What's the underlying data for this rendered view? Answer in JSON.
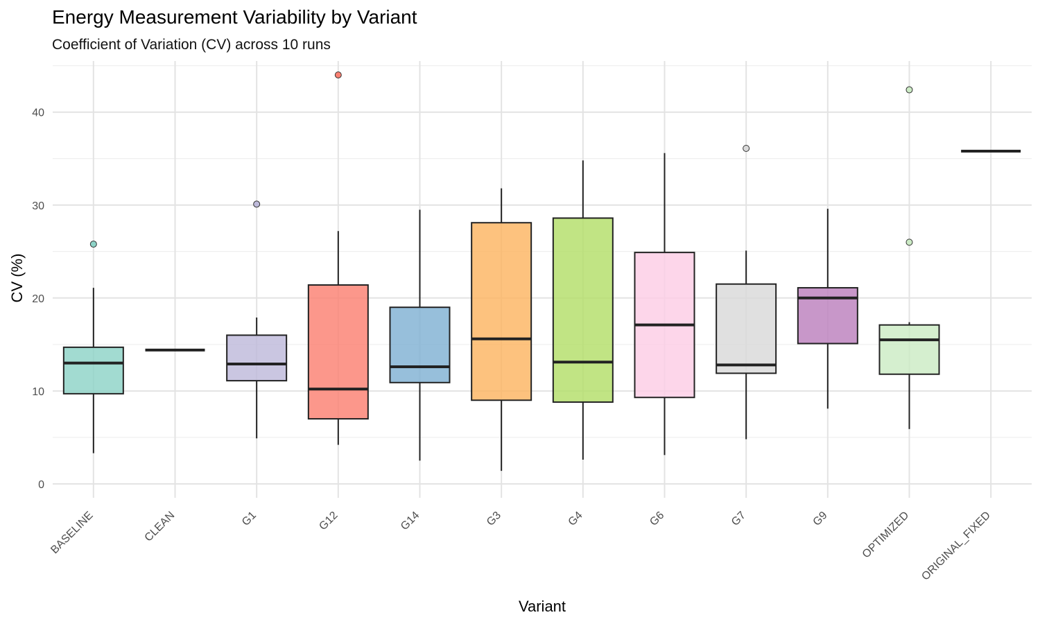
{
  "chart_data": {
    "type": "box",
    "title": "Energy Measurement Variability by Variant",
    "subtitle": "Coefficient of Variation (CV) across 10 runs",
    "xlabel": "Variant",
    "ylabel": "CV (%)",
    "ylim": [
      -1.5,
      45.5
    ],
    "yticks": [
      0,
      10,
      20,
      30,
      40
    ],
    "grid": true,
    "legend": "none",
    "categories": [
      "BASELINE",
      "CLEAN",
      "G1",
      "G12",
      "G14",
      "G3",
      "G4",
      "G6",
      "G7",
      "G9",
      "OPTIMIZED",
      "ORIGINAL_FIXED"
    ],
    "boxes": [
      {
        "label": "BASELINE",
        "min": 3.3,
        "q1": 9.7,
        "median": 13.0,
        "q3": 14.7,
        "max": 21.1,
        "outliers": [
          25.8
        ],
        "color": "#8dd3c7"
      },
      {
        "label": "CLEAN",
        "min": 14.4,
        "q1": 14.4,
        "median": 14.4,
        "q3": 14.4,
        "max": 14.4,
        "outliers": [],
        "color": "#ffffb3"
      },
      {
        "label": "G1",
        "min": 4.9,
        "q1": 11.1,
        "median": 12.9,
        "q3": 16.0,
        "max": 17.9,
        "outliers": [
          30.1
        ],
        "color": "#bebada"
      },
      {
        "label": "G12",
        "min": 4.2,
        "q1": 7.0,
        "median": 10.2,
        "q3": 21.4,
        "max": 27.2,
        "outliers": [
          44.0
        ],
        "color": "#fb8072"
      },
      {
        "label": "G14",
        "min": 2.5,
        "q1": 10.9,
        "median": 12.6,
        "q3": 19.0,
        "max": 29.5,
        "outliers": [],
        "color": "#80b1d3"
      },
      {
        "label": "G3",
        "min": 1.4,
        "q1": 9.0,
        "median": 15.6,
        "q3": 28.1,
        "max": 31.8,
        "outliers": [],
        "color": "#fdb462"
      },
      {
        "label": "G4",
        "min": 2.6,
        "q1": 8.8,
        "median": 13.1,
        "q3": 28.6,
        "max": 34.8,
        "outliers": [],
        "color": "#b3de69"
      },
      {
        "label": "G6",
        "min": 3.1,
        "q1": 9.3,
        "median": 17.1,
        "q3": 24.9,
        "max": 35.6,
        "outliers": [],
        "color": "#fccde5"
      },
      {
        "label": "G7",
        "min": 4.8,
        "q1": 11.9,
        "median": 12.8,
        "q3": 21.5,
        "max": 25.1,
        "outliers": [
          36.1
        ],
        "color": "#d9d9d9"
      },
      {
        "label": "G9",
        "min": 8.1,
        "q1": 15.1,
        "median": 20.0,
        "q3": 21.1,
        "max": 29.6,
        "outliers": [],
        "color": "#bc80bd"
      },
      {
        "label": "OPTIMIZED",
        "min": 5.9,
        "q1": 11.8,
        "median": 15.5,
        "q3": 17.1,
        "max": 17.4,
        "outliers": [
          26.0,
          42.4
        ],
        "color": "#ccebc5"
      },
      {
        "label": "ORIGINAL_FIXED",
        "min": 35.8,
        "q1": 35.8,
        "median": 35.8,
        "q3": 35.8,
        "max": 35.8,
        "outliers": [],
        "color": "#ffed6f"
      }
    ]
  }
}
